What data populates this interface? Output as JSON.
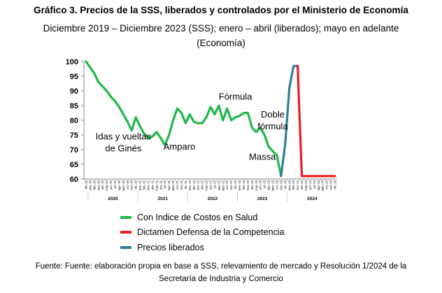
{
  "title": "Gráfico 3. Precios de la SSS, liberados y controlados por el Ministerio de Economía",
  "subtitle_line1": "Diciembre 2019 – Diciembre 2023 (SSS); enero – abril (liberados); mayo en adelante",
  "subtitle_line2": "(Economía)",
  "footer_line1": "Fuente: Fuente: elaboración propia en base a SSS, relevamiento de mercado y Resolución 1/2024 de la",
  "footer_line2": "Secretaría de Industria y Comercio",
  "colors": {
    "green": "#1fb84a",
    "red": "#ee1c24",
    "blue": "#2e7f97"
  },
  "chart_data": {
    "type": "line",
    "title": "",
    "xlabel": "",
    "ylabel": "",
    "ylim": [
      60,
      100
    ],
    "yticks": [
      "100",
      "95",
      "90",
      "85",
      "80",
      "75",
      "70",
      "65",
      "60"
    ],
    "grid": false,
    "legend_position": "bottom",
    "x_month_labels": [
      "dic.-19",
      "ene.-20",
      "feb.-20",
      "mar.-20",
      "abr.-20",
      "may.-20",
      "jun.-20",
      "jul.-20",
      "ago.-20",
      "sept.-20",
      "oct.-20",
      "nov.-20",
      "dic.-20",
      "ene.-21",
      "feb.-21",
      "mar.-21",
      "abr.-21",
      "may.-21",
      "jun.-21",
      "jul.-21",
      "ago.-21",
      "sept.-21",
      "oct.-21",
      "nov.-21",
      "dic.-21",
      "ene.-22",
      "feb.-22",
      "mar.-22",
      "abr.-22",
      "may.-22",
      "jun.-22",
      "jul.-22",
      "ago.-22",
      "sept.-22",
      "oct.-22",
      "nov.-22",
      "dic.-22",
      "ene.-23",
      "feb.-23",
      "mar.-23",
      "abr.-23",
      "may.-23",
      "jun.-23",
      "jul.-23",
      "ago.-23",
      "sept.-23",
      "oct.-23",
      "nov.-23",
      "dic.-23",
      "ene.-24",
      "feb.-24",
      "mar.-24",
      "abr.-24",
      "may.-24",
      "jun.-24",
      "jul.-24",
      "ago.-24",
      "sept.-24",
      "oct.-24",
      "nov.-24",
      "dic.-24"
    ],
    "x_year_labels": [
      {
        "label": "2020",
        "from": 1,
        "to": 12
      },
      {
        "label": "2021",
        "from": 13,
        "to": 24
      },
      {
        "label": "2022",
        "from": 25,
        "to": 36
      },
      {
        "label": "2023",
        "from": 37,
        "to": 48
      },
      {
        "label": "2024",
        "from": 49,
        "to": 60
      }
    ],
    "series": [
      {
        "name": "Con Indice de Costos en Salud",
        "color": "#1fb84a",
        "start_index": 0,
        "values": [
          100,
          98,
          96,
          93,
          91.5,
          90,
          88,
          86.5,
          84.5,
          82,
          79.5,
          76.5,
          81,
          78,
          75.5,
          74,
          74.5,
          76,
          74,
          71.5,
          75,
          80,
          84,
          82.5,
          79,
          82,
          79.5,
          79,
          79,
          81,
          84.5,
          82,
          85,
          80,
          84,
          80,
          81,
          81.5,
          82.5,
          82.5,
          77.5,
          76,
          77.5,
          75,
          71,
          69.5,
          68,
          61
        ]
      },
      {
        "name": "Precios liberados",
        "color": "#2e7f97",
        "start_index": 47,
        "values": [
          61,
          72,
          91,
          98.5,
          98.5
        ]
      },
      {
        "name": "Dictamen Defensa de la Competencia",
        "color": "#ee1c24",
        "start_index": 51,
        "values": [
          98.5,
          61,
          61,
          61,
          61,
          61,
          61,
          61,
          61,
          61
        ]
      }
    ],
    "annotations": [
      {
        "lines": [
          "Idas y vueltas",
          "de Ginés"
        ],
        "x": 9,
        "y": 73.5
      },
      {
        "lines": [
          "Amparo"
        ],
        "x": 22.5,
        "y": 70
      },
      {
        "lines": [
          "Fórmula"
        ],
        "x": 36,
        "y": 87
      },
      {
        "lines": [
          "Doble",
          "fórmula"
        ],
        "x": 45,
        "y": 81
      },
      {
        "lines": [
          "Massa"
        ],
        "x": 42.5,
        "y": 66.5
      }
    ]
  },
  "legend": [
    {
      "label": "Con Indice de Costos en Salud",
      "color": "#1fb84a"
    },
    {
      "label": "Dictamen Defensa de la Competencia",
      "color": "#ee1c24"
    },
    {
      "label": "Precios liberados",
      "color": "#2e7f97"
    }
  ]
}
